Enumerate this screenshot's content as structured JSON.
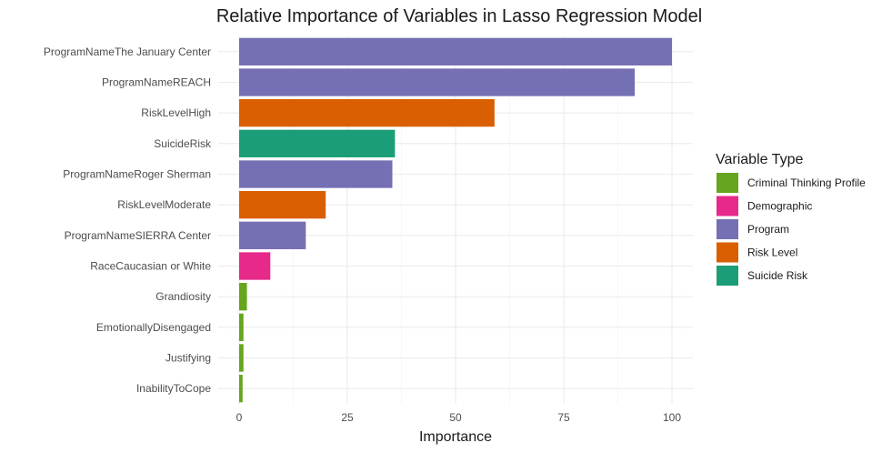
{
  "chart_data": {
    "type": "bar",
    "orientation": "horizontal",
    "title": "Relative Importance of Variables in Lasso Regression Model",
    "xlabel": "Importance",
    "ylabel": "",
    "xlim": [
      0,
      100
    ],
    "xticks": [
      0,
      25,
      50,
      75,
      100
    ],
    "grid": true,
    "legend": {
      "title": "Variable Type",
      "position": "right",
      "entries": [
        {
          "name": "Criminal Thinking Profile",
          "color": "#66a61e"
        },
        {
          "name": "Demographic",
          "color": "#e7298a"
        },
        {
          "name": "Program",
          "color": "#7570b3"
        },
        {
          "name": "Risk Level",
          "color": "#d95f02"
        },
        {
          "name": "Suicide Risk",
          "color": "#1b9e77"
        }
      ]
    },
    "categories": [
      "ProgramNameThe January Center",
      "ProgramNameREACH",
      "RiskLevelHigh",
      "SuicideRisk",
      "ProgramNameRoger Sherman",
      "RiskLevelModerate",
      "ProgramNameSIERRA Center",
      "RaceCaucasian or White",
      "Grandiosity",
      "EmotionallyDisengaged",
      "Justifying",
      "InabilityToCope"
    ],
    "values": [
      100,
      91.4,
      59,
      36,
      35.4,
      20,
      15.4,
      7.2,
      1.8,
      1.0,
      1.0,
      0.8
    ],
    "groups": [
      "Program",
      "Program",
      "Risk Level",
      "Suicide Risk",
      "Program",
      "Risk Level",
      "Program",
      "Demographic",
      "Criminal Thinking Profile",
      "Criminal Thinking Profile",
      "Criminal Thinking Profile",
      "Criminal Thinking Profile"
    ]
  }
}
